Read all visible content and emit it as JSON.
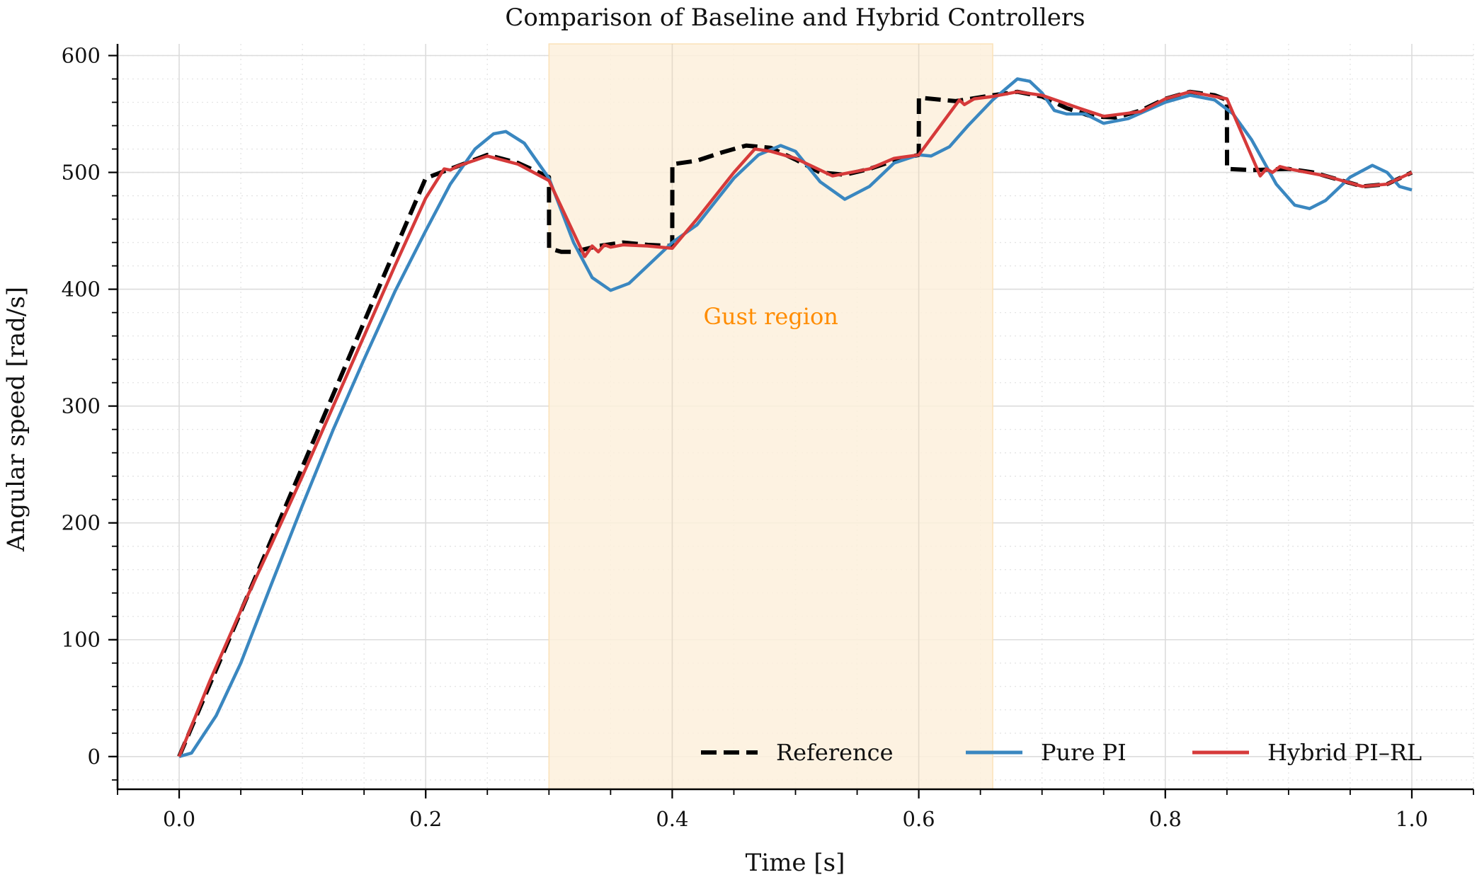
{
  "chart_data": {
    "type": "line",
    "title": "Comparison of Baseline and Hybrid Controllers",
    "xlabel": "Time [s]",
    "ylabel": "Angular speed [rad/s]",
    "xlim": [
      -0.05,
      1.05
    ],
    "ylim": [
      -28,
      610
    ],
    "xticks": [
      "0.0",
      "0.2",
      "0.4",
      "0.6",
      "0.8",
      "1.0"
    ],
    "xtick_values": [
      0,
      0.2,
      0.4,
      0.6,
      0.8,
      1.0
    ],
    "yticks": [
      "0",
      "100",
      "200",
      "300",
      "400",
      "500",
      "600"
    ],
    "ytick_values": [
      0,
      100,
      200,
      300,
      400,
      500,
      600
    ],
    "grid": true,
    "legend_position": "lower-right",
    "shaded_region": {
      "x": [
        0.3,
        0.66
      ],
      "label": "Gust region",
      "color": "#fdf0dc",
      "label_color": "#ff8c00",
      "label_at": [
        0.48,
        370
      ]
    },
    "series": [
      {
        "name": "Reference",
        "color": "#000000",
        "style": "dashed",
        "x": [
          0,
          0.05,
          0.1,
          0.15,
          0.2,
          0.225,
          0.25,
          0.275,
          0.3,
          0.3001,
          0.31,
          0.32,
          0.34,
          0.36,
          0.38,
          0.4,
          0.4001,
          0.42,
          0.44,
          0.46,
          0.48,
          0.5,
          0.52,
          0.54,
          0.56,
          0.58,
          0.6,
          0.6001,
          0.63,
          0.66,
          0.68,
          0.7,
          0.72,
          0.74,
          0.76,
          0.78,
          0.8,
          0.82,
          0.84,
          0.85,
          0.8501,
          0.87,
          0.9,
          0.92,
          0.94,
          0.96,
          0.98,
          1.0
        ],
        "y": [
          0,
          124,
          248,
          372,
          495,
          505,
          515,
          508,
          496,
          435,
          432,
          432,
          437,
          440,
          438,
          437,
          507,
          510,
          517,
          523,
          521,
          511,
          500,
          498,
          503,
          510,
          515,
          564,
          561,
          566,
          569,
          565,
          555,
          548,
          547,
          553,
          563,
          569,
          566,
          562,
          503,
          502,
          503,
          500,
          494,
          488,
          490,
          500
        ]
      },
      {
        "name": "Pure PI",
        "color": "#3a87c0",
        "style": "solid",
        "x": [
          0,
          0.01,
          0.03,
          0.05,
          0.075,
          0.1,
          0.125,
          0.15,
          0.175,
          0.2,
          0.22,
          0.24,
          0.255,
          0.265,
          0.28,
          0.3,
          0.32,
          0.335,
          0.35,
          0.365,
          0.38,
          0.4,
          0.42,
          0.45,
          0.47,
          0.488,
          0.5,
          0.52,
          0.54,
          0.56,
          0.58,
          0.6,
          0.61,
          0.625,
          0.64,
          0.66,
          0.68,
          0.69,
          0.7,
          0.71,
          0.72,
          0.735,
          0.75,
          0.77,
          0.8,
          0.82,
          0.84,
          0.855,
          0.87,
          0.89,
          0.905,
          0.917,
          0.93,
          0.95,
          0.968,
          0.98,
          0.99,
          1.0
        ],
        "y": [
          0,
          3,
          35,
          80,
          148,
          215,
          280,
          340,
          398,
          450,
          490,
          520,
          533,
          535,
          525,
          495,
          440,
          410,
          399,
          405,
          420,
          440,
          455,
          495,
          515,
          523,
          518,
          492,
          477,
          488,
          508,
          515,
          514,
          522,
          540,
          562,
          580,
          578,
          568,
          553,
          550,
          550,
          542,
          546,
          560,
          566,
          562,
          550,
          528,
          490,
          472,
          469,
          476,
          496,
          506,
          500,
          488,
          485
        ]
      },
      {
        "name": "Hybrid PI–RL",
        "color": "#d63a3a",
        "style": "solid",
        "x": [
          0,
          0.025,
          0.05,
          0.075,
          0.1,
          0.125,
          0.15,
          0.175,
          0.2,
          0.215,
          0.22,
          0.225,
          0.25,
          0.275,
          0.3,
          0.329,
          0.335,
          0.34,
          0.345,
          0.35,
          0.36,
          0.38,
          0.4,
          0.42,
          0.45,
          0.467,
          0.48,
          0.5,
          0.53,
          0.56,
          0.58,
          0.6,
          0.633,
          0.637,
          0.645,
          0.66,
          0.68,
          0.7,
          0.73,
          0.75,
          0.78,
          0.8,
          0.82,
          0.85,
          0.877,
          0.882,
          0.887,
          0.893,
          0.9,
          0.93,
          0.96,
          0.98,
          1.0
        ],
        "y": [
          0,
          65,
          125,
          182,
          240,
          300,
          360,
          420,
          478,
          503,
          502,
          505,
          514,
          507,
          493,
          428,
          437,
          432,
          438,
          436,
          438,
          437,
          435,
          460,
          500,
          520,
          518,
          512,
          497,
          503,
          512,
          515,
          562,
          558,
          563,
          565,
          569,
          566,
          555,
          548,
          552,
          563,
          569,
          563,
          497,
          503,
          500,
          505,
          503,
          497,
          488,
          490,
          500
        ]
      }
    ]
  }
}
